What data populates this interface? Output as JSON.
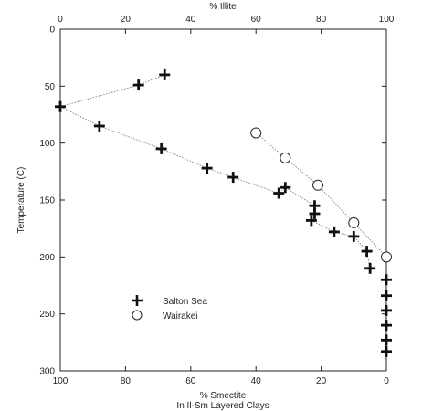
{
  "chart_data": {
    "type": "scatter",
    "title": "",
    "top_axis": {
      "label": "% Illite",
      "ticks": [
        "0",
        "20",
        "40",
        "60",
        "80",
        "100"
      ],
      "range": [
        0,
        100
      ]
    },
    "bottom_axis": {
      "label_line1": "% Smectite",
      "label_line2": "In Il-Sm Layered Clays",
      "ticks": [
        "100",
        "80",
        "60",
        "40",
        "20",
        "0"
      ],
      "range": [
        100,
        0
      ]
    },
    "y_axis": {
      "label": "Temperature (C)",
      "ticks": [
        "0",
        "50",
        "100",
        "150",
        "200",
        "250",
        "300"
      ],
      "range": [
        0,
        300
      ],
      "inverted": true
    },
    "grid": false,
    "legend_position": "bottom-center",
    "colors": {
      "ink": "#222222",
      "line": "#777777",
      "background": "#ffffff"
    },
    "series": [
      {
        "name": "Salton Sea",
        "marker": "plus",
        "points": [
          {
            "smectite": 68,
            "temp": 40
          },
          {
            "smectite": 76,
            "temp": 49
          },
          {
            "smectite": 100,
            "temp": 68
          },
          {
            "smectite": 88,
            "temp": 85
          },
          {
            "smectite": 69,
            "temp": 105
          },
          {
            "smectite": 55,
            "temp": 122
          },
          {
            "smectite": 47,
            "temp": 130
          },
          {
            "smectite": 33,
            "temp": 144
          },
          {
            "smectite": 31,
            "temp": 139
          },
          {
            "smectite": 22,
            "temp": 155
          },
          {
            "smectite": 22,
            "temp": 162
          },
          {
            "smectite": 23,
            "temp": 168
          },
          {
            "smectite": 16,
            "temp": 178
          },
          {
            "smectite": 10,
            "temp": 182
          },
          {
            "smectite": 6,
            "temp": 195
          },
          {
            "smectite": 5,
            "temp": 210
          },
          {
            "smectite": 0,
            "temp": 220
          },
          {
            "smectite": 0,
            "temp": 234
          },
          {
            "smectite": 0,
            "temp": 247
          },
          {
            "smectite": 0,
            "temp": 260
          },
          {
            "smectite": 0,
            "temp": 273
          },
          {
            "smectite": 0,
            "temp": 283
          }
        ]
      },
      {
        "name": "Wairakei",
        "marker": "circle",
        "points": [
          {
            "smectite": 40,
            "temp": 91
          },
          {
            "smectite": 31,
            "temp": 113
          },
          {
            "smectite": 21,
            "temp": 137
          },
          {
            "smectite": 10,
            "temp": 170
          },
          {
            "smectite": 0,
            "temp": 200
          }
        ]
      }
    ]
  }
}
